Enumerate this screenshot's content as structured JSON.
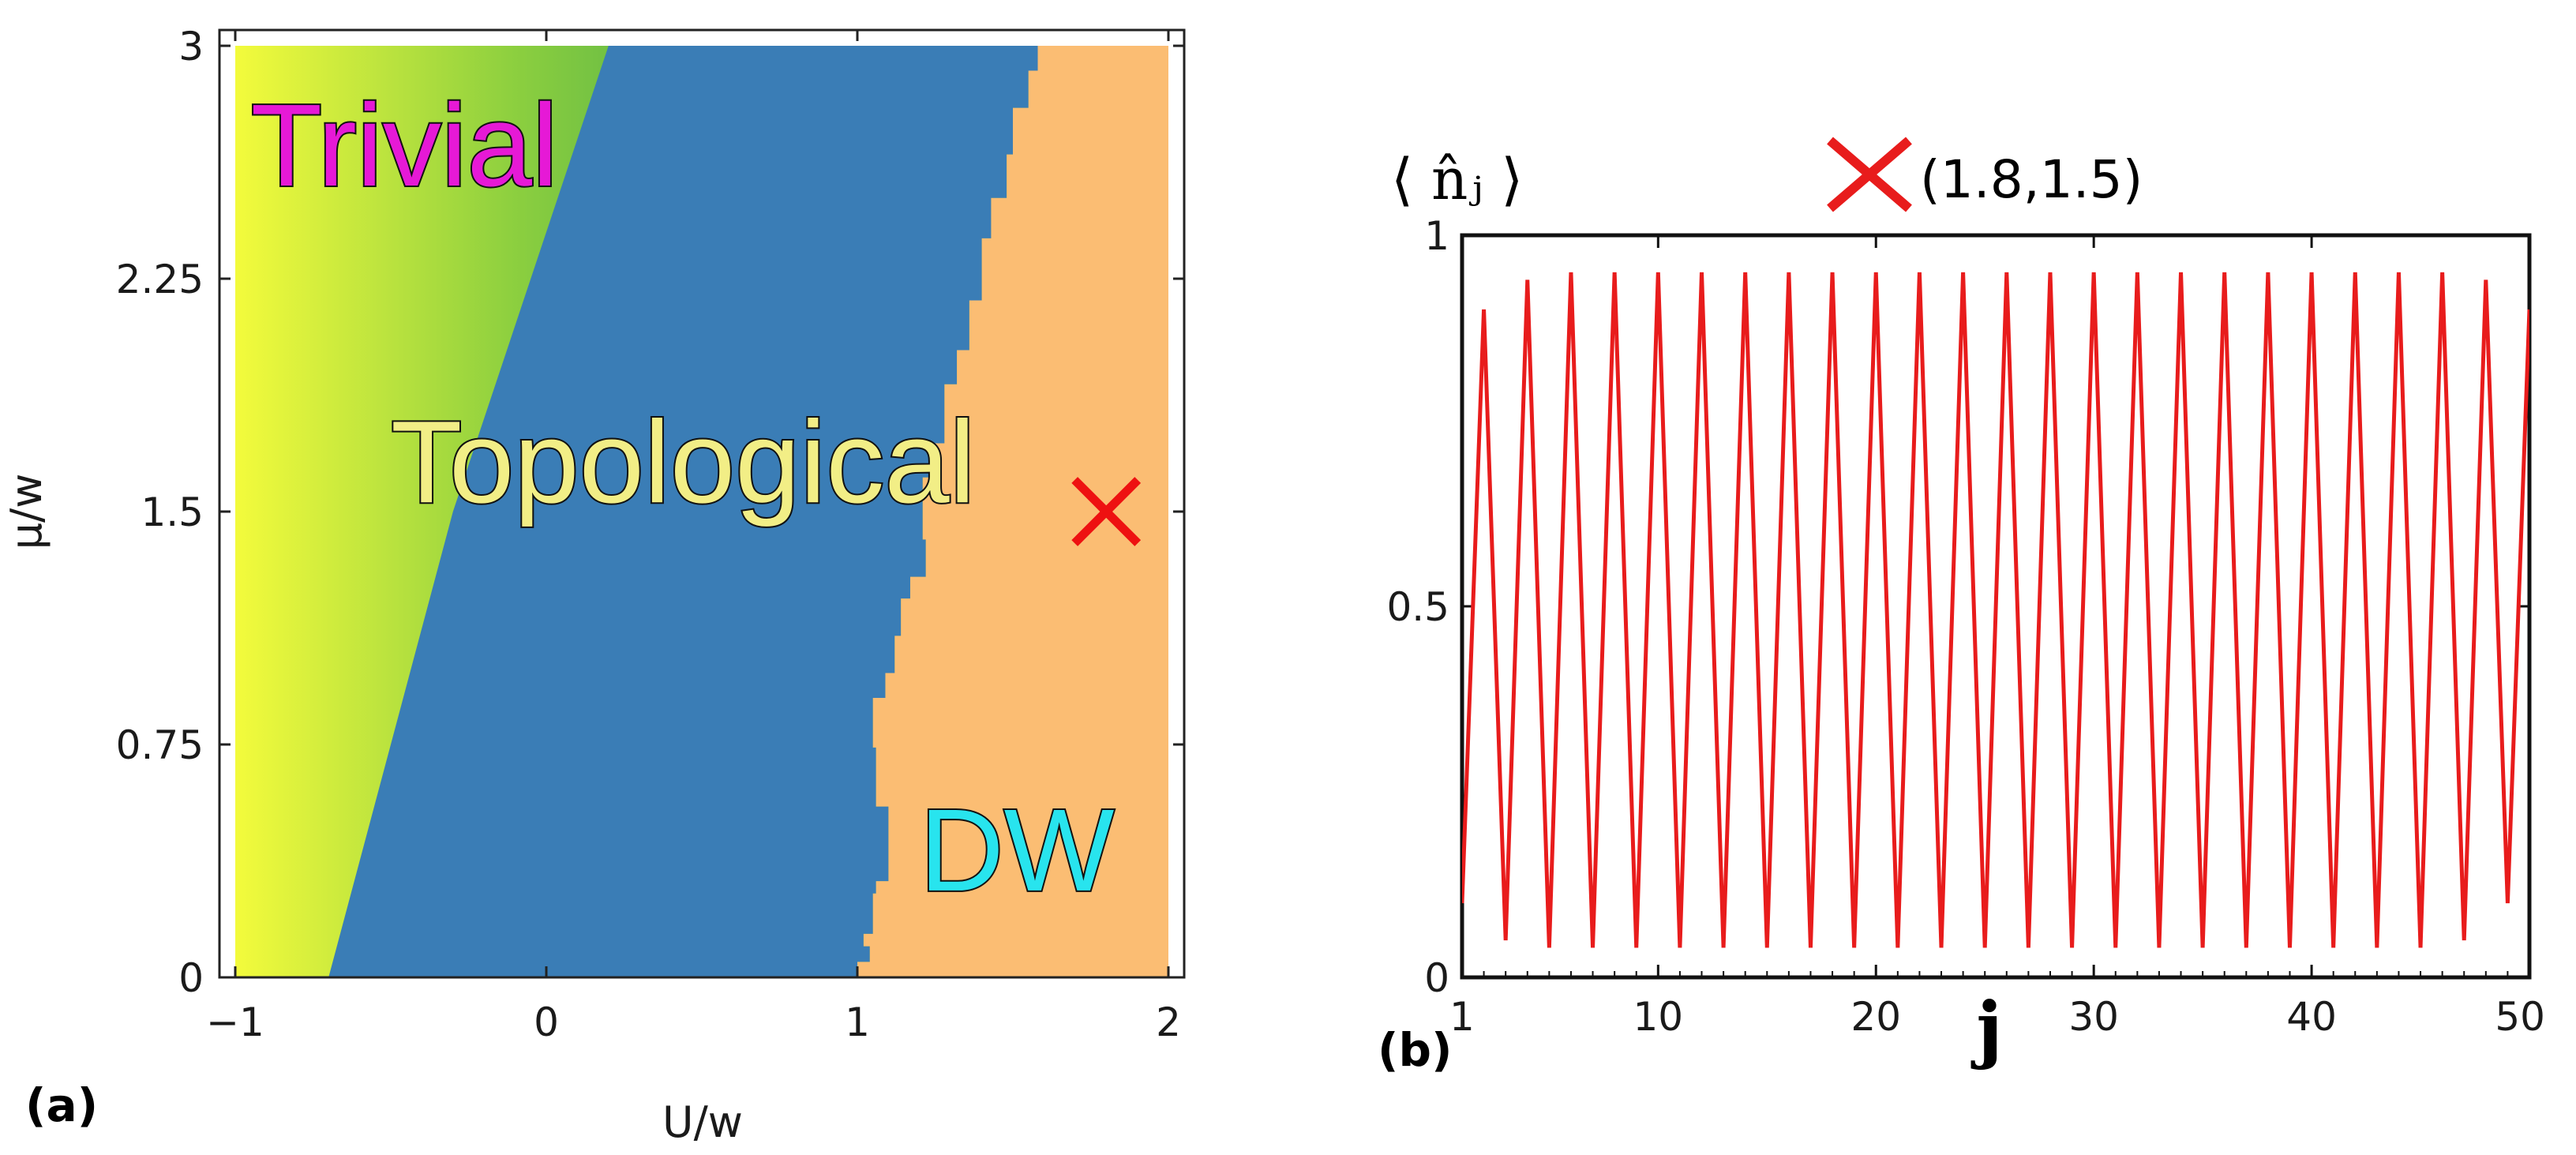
{
  "panel_a": {
    "label": "(a)",
    "xlabel": "U/w",
    "ylabel": "μ/w",
    "region_labels": [
      {
        "text": "Trivial",
        "color": "#e619d6",
        "U": -0.95,
        "mu": 2.55
      },
      {
        "text": "Topological",
        "color": "#f2ee86",
        "U": -0.5,
        "mu": 1.53
      },
      {
        "text": "DW",
        "color": "#28e4ee",
        "U": 1.2,
        "mu": 0.28
      }
    ],
    "marker": {
      "U": 1.8,
      "mu": 1.5,
      "color": "#ee1111"
    }
  },
  "panel_b": {
    "label": "(b)",
    "ylabel": "⟨ n̂ⱼ ⟩",
    "xlabel": "j",
    "legend_text": "(1.8,1.5)",
    "line_color": "#e81c1c"
  },
  "chart_data": [
    {
      "type": "heatmap",
      "title": "",
      "xlabel": "U/w",
      "ylabel": "μ/w",
      "xlim": [
        -1,
        2
      ],
      "ylim": [
        0,
        3
      ],
      "xticks": [
        -1,
        0,
        1,
        2
      ],
      "xtick_labels": [
        "−1",
        "0",
        "1",
        "2"
      ],
      "yticks": [
        0,
        0.75,
        1.5,
        2.25,
        3
      ],
      "ytick_labels": [
        "0",
        "0.75",
        "1.5",
        "2.25",
        "3"
      ],
      "phases": [
        "Trivial",
        "Topological",
        "DW"
      ],
      "colors": {
        "trivial_yellow": "#f3fb3c",
        "trivial_green": "#3fa54a",
        "topological": "#3a7db6",
        "dw": "#fbbd73"
      },
      "trivial_topological_boundary": {
        "mu": [
          0,
          0.75,
          1.5,
          2.25,
          3
        ],
        "U": [
          -0.7,
          -0.5,
          -0.3,
          -0.05,
          0.2
        ]
      },
      "topological_dw_boundary": {
        "mu": [
          0,
          0.05,
          0.1,
          0.14,
          0.27,
          0.31,
          0.5,
          0.55,
          0.74,
          0.9,
          0.98,
          1.1,
          1.22,
          1.29,
          1.41,
          1.61,
          1.72,
          1.91,
          2.02,
          2.18,
          2.38,
          2.51,
          2.65,
          2.8,
          2.92,
          3
        ],
        "U": [
          1.0,
          1.04,
          1.02,
          1.05,
          1.06,
          1.1,
          1.1,
          1.06,
          1.05,
          1.09,
          1.12,
          1.14,
          1.17,
          1.22,
          1.21,
          1.25,
          1.28,
          1.32,
          1.36,
          1.4,
          1.43,
          1.48,
          1.5,
          1.55,
          1.58,
          1.65
        ]
      },
      "marker": {
        "U": 1.8,
        "mu": 1.5,
        "symbol": "x"
      }
    },
    {
      "type": "line",
      "title": "",
      "xlabel": "j",
      "ylabel": "⟨ n̂ⱼ ⟩",
      "xlim": [
        1,
        50
      ],
      "ylim": [
        0,
        1
      ],
      "xticks": [
        1,
        10,
        20,
        30,
        40,
        50
      ],
      "yticks": [
        0,
        0.5,
        1
      ],
      "legend": "(1.8,1.5)",
      "series": [
        {
          "name": "(1.8,1.5)",
          "x": [
            1,
            2,
            3,
            4,
            5,
            6,
            7,
            8,
            9,
            10,
            11,
            12,
            13,
            14,
            15,
            16,
            17,
            18,
            19,
            20,
            21,
            22,
            23,
            24,
            25,
            26,
            27,
            28,
            29,
            30,
            31,
            32,
            33,
            34,
            35,
            36,
            37,
            38,
            39,
            40,
            41,
            42,
            43,
            44,
            45,
            46,
            47,
            48,
            49,
            50
          ],
          "y": [
            0.1,
            0.9,
            0.05,
            0.94,
            0.04,
            0.95,
            0.04,
            0.95,
            0.04,
            0.95,
            0.04,
            0.95,
            0.04,
            0.95,
            0.04,
            0.95,
            0.04,
            0.95,
            0.04,
            0.95,
            0.04,
            0.95,
            0.04,
            0.95,
            0.04,
            0.95,
            0.04,
            0.95,
            0.04,
            0.95,
            0.04,
            0.95,
            0.04,
            0.95,
            0.04,
            0.95,
            0.04,
            0.95,
            0.04,
            0.95,
            0.04,
            0.95,
            0.04,
            0.95,
            0.04,
            0.95,
            0.05,
            0.94,
            0.1,
            0.9
          ]
        }
      ]
    }
  ]
}
